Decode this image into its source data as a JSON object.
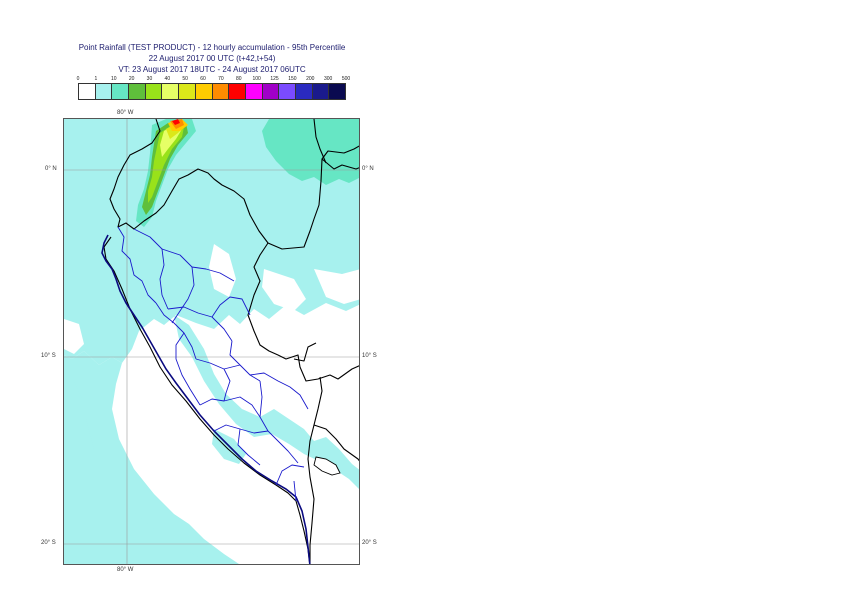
{
  "header": {
    "line1": "Point Rainfall (TEST PRODUCT) - 12 hourly accumulation - 95th Percentile",
    "line2": "22 August 2017 00 UTC (t+42,t+54)",
    "line3": "VT: 23 August 2017 18UTC - 24 August 2017 06UTC"
  },
  "legend": {
    "labels": [
      "0",
      "1",
      "10",
      "20",
      "30",
      "40",
      "50",
      "60",
      "70",
      "80",
      "100",
      "125",
      "150",
      "200",
      "300",
      "500"
    ],
    "colors": [
      "#ffffff",
      "#a7f1ee",
      "#66e6c4",
      "#5fbf3b",
      "#99e21a",
      "#e6ff66",
      "#dbe81a",
      "#ffcc00",
      "#ff8c00",
      "#ff0000",
      "#ff00ff",
      "#a000c8",
      "#7b4bff",
      "#2a2ac0",
      "#1a1a8c",
      "#0a0a50"
    ]
  },
  "map": {
    "lon_labels": {
      "top": "80° W",
      "bottom": "80° W"
    },
    "lat_labels": {
      "eq_left": "0° N",
      "eq_right": "0° N",
      "s10_left": "10° S",
      "s10_right": "10° S",
      "s20_left": "20° S",
      "s20_right": "20° S"
    }
  }
}
